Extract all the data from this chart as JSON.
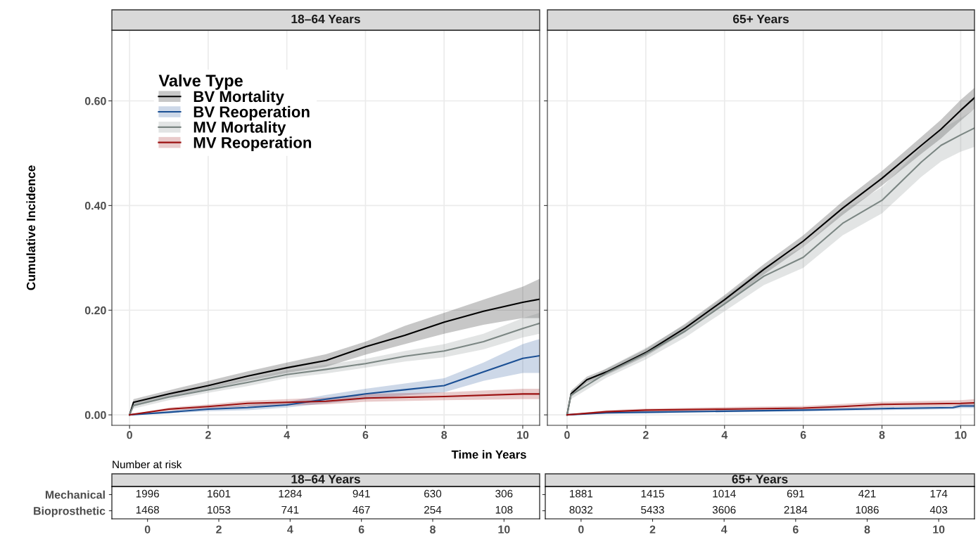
{
  "chart_data": [
    {
      "type": "line",
      "title": "18–64 Years",
      "xlabel": "Time in Years",
      "ylabel": "Cumulative Incidence",
      "legend_title": "Valve Type",
      "legend": "top left",
      "grid": true,
      "xlim": [
        -0.45,
        10.43
      ],
      "ylim": [
        -0.02,
        0.735
      ],
      "xticks": [
        0,
        2,
        4,
        6,
        8,
        10
      ],
      "yticks": [
        {
          "value": 0,
          "label": "0.00"
        },
        {
          "value": 0.2,
          "label": "0.20"
        },
        {
          "value": 0.4,
          "label": "0.40"
        },
        {
          "value": 0.6,
          "label": "0.60"
        }
      ],
      "series": [
        {
          "name": "BV Mortality",
          "color": "#000000",
          "x": [
            0,
            0.1,
            1,
            2,
            3,
            4,
            5,
            6,
            7,
            8,
            9,
            10,
            10.43
          ],
          "values": [
            0,
            0.024,
            0.04,
            0.056,
            0.074,
            0.09,
            0.104,
            0.13,
            0.152,
            0.177,
            0.198,
            0.215,
            0.221
          ],
          "lower": [
            0,
            0.016,
            0.034,
            0.05,
            0.065,
            0.08,
            0.092,
            0.115,
            0.135,
            0.155,
            0.172,
            0.185,
            0.185
          ],
          "upper": [
            0,
            0.03,
            0.047,
            0.065,
            0.083,
            0.1,
            0.116,
            0.14,
            0.17,
            0.195,
            0.22,
            0.245,
            0.26
          ]
        },
        {
          "name": "BV Reoperation",
          "color": "#1a4f94",
          "x": [
            0,
            1,
            2,
            3,
            4,
            5,
            6,
            7,
            8,
            9,
            10,
            10.43
          ],
          "values": [
            0,
            0.005,
            0.011,
            0.014,
            0.019,
            0.03,
            0.04,
            0.048,
            0.056,
            0.082,
            0.108,
            0.113
          ],
          "lower": [
            0,
            0.003,
            0.007,
            0.009,
            0.014,
            0.022,
            0.03,
            0.037,
            0.043,
            0.065,
            0.08,
            0.08
          ],
          "upper": [
            0,
            0.008,
            0.015,
            0.019,
            0.025,
            0.038,
            0.05,
            0.06,
            0.07,
            0.1,
            0.135,
            0.145
          ]
        },
        {
          "name": "MV Mortality",
          "color": "#7b8683",
          "x": [
            0,
            0.1,
            1,
            2,
            3,
            4,
            5,
            6,
            7,
            8,
            9,
            10,
            10.43
          ],
          "values": [
            0,
            0.018,
            0.034,
            0.048,
            0.062,
            0.077,
            0.087,
            0.098,
            0.112,
            0.122,
            0.14,
            0.165,
            0.175
          ],
          "lower": [
            0,
            0.012,
            0.028,
            0.042,
            0.055,
            0.07,
            0.079,
            0.09,
            0.102,
            0.11,
            0.125,
            0.148,
            0.155
          ],
          "upper": [
            0,
            0.022,
            0.04,
            0.054,
            0.07,
            0.085,
            0.096,
            0.107,
            0.122,
            0.135,
            0.155,
            0.185,
            0.195
          ]
        },
        {
          "name": "MV Reoperation",
          "color": "#9b1010",
          "x": [
            0,
            1,
            2,
            3,
            4,
            5,
            6,
            8,
            10,
            10.43
          ],
          "values": [
            0,
            0.011,
            0.016,
            0.022,
            0.024,
            0.026,
            0.032,
            0.035,
            0.04,
            0.04
          ],
          "lower": [
            0,
            0.008,
            0.012,
            0.016,
            0.018,
            0.02,
            0.025,
            0.028,
            0.03,
            0.03
          ],
          "upper": [
            0,
            0.014,
            0.02,
            0.027,
            0.03,
            0.033,
            0.04,
            0.043,
            0.05,
            0.05
          ]
        }
      ]
    },
    {
      "type": "line",
      "title": "65+ Years",
      "tick_labels": "x",
      "grid": true,
      "xlim": [
        -0.5,
        10.35
      ],
      "ylim": [
        -0.02,
        0.735
      ],
      "xticks": [
        0,
        2,
        4,
        6,
        8,
        10
      ],
      "yticks": [
        0,
        0.2,
        0.4,
        0.6
      ],
      "series": [
        {
          "color": "#000000",
          "x": [
            0,
            0.1,
            0.5,
            1,
            2,
            3,
            4,
            5,
            6,
            7,
            8,
            9,
            9.5,
            10,
            10.35
          ],
          "values": [
            0,
            0.04,
            0.067,
            0.082,
            0.119,
            0.166,
            0.22,
            0.278,
            0.332,
            0.395,
            0.452,
            0.515,
            0.546,
            0.582,
            0.606
          ],
          "lower": [
            0,
            0.034,
            0.061,
            0.076,
            0.112,
            0.158,
            0.211,
            0.268,
            0.321,
            0.382,
            0.438,
            0.499,
            0.528,
            0.562,
            0.585
          ],
          "upper": [
            0,
            0.046,
            0.073,
            0.088,
            0.126,
            0.174,
            0.229,
            0.288,
            0.343,
            0.408,
            0.466,
            0.531,
            0.564,
            0.602,
            0.625
          ]
        },
        {
          "color": "#1a4f94",
          "x": [
            0,
            1,
            2,
            4,
            6,
            8,
            9.8,
            10,
            10.35
          ],
          "values": [
            0,
            0.004,
            0.005,
            0.007,
            0.009,
            0.012,
            0.014,
            0.017,
            0.017
          ],
          "lower": [
            0,
            0.002,
            0.003,
            0.005,
            0.007,
            0.009,
            0.011,
            0.013,
            0.013
          ],
          "upper": [
            0,
            0.006,
            0.007,
            0.009,
            0.011,
            0.015,
            0.017,
            0.021,
            0.021
          ]
        },
        {
          "color": "#7b8683",
          "x": [
            0,
            0.1,
            1,
            2,
            3,
            4,
            5,
            6,
            7,
            8,
            9,
            9.5,
            10,
            10.35
          ],
          "values": [
            0,
            0.038,
            0.08,
            0.117,
            0.16,
            0.212,
            0.265,
            0.301,
            0.366,
            0.41,
            0.483,
            0.515,
            0.535,
            0.548
          ],
          "lower": [
            0,
            0.03,
            0.071,
            0.106,
            0.148,
            0.198,
            0.248,
            0.281,
            0.343,
            0.385,
            0.455,
            0.484,
            0.503,
            0.512
          ],
          "upper": [
            0,
            0.046,
            0.089,
            0.128,
            0.172,
            0.226,
            0.282,
            0.321,
            0.389,
            0.435,
            0.511,
            0.546,
            0.567,
            0.584
          ]
        },
        {
          "color": "#9b1010",
          "x": [
            0,
            1,
            2,
            4,
            6,
            7,
            8,
            10,
            10.35
          ],
          "values": [
            0,
            0.006,
            0.009,
            0.011,
            0.013,
            0.016,
            0.02,
            0.022,
            0.023
          ],
          "lower": [
            0,
            0.004,
            0.006,
            0.008,
            0.009,
            0.012,
            0.015,
            0.017,
            0.017
          ],
          "upper": [
            0,
            0.009,
            0.012,
            0.015,
            0.017,
            0.021,
            0.025,
            0.028,
            0.03
          ]
        }
      ]
    },
    {
      "type": "heatmap",
      "title": "18–64 Years",
      "annotations": [
        "Number at risk"
      ],
      "data_labels": true,
      "color": "#ffffff",
      "categories": [
        "0",
        "2",
        "4",
        "6",
        "8",
        "10"
      ],
      "y_categories": [
        "Mechanical",
        "Bioprosthetic"
      ],
      "cells": [
        [
          1996,
          1601,
          1284,
          941,
          630,
          306
        ],
        [
          1468,
          1053,
          741,
          467,
          254,
          108
        ]
      ]
    },
    {
      "type": "heatmap",
      "title": "65+ Years",
      "tick_labels": "x",
      "data_labels": true,
      "color": "#ffffff",
      "categories": [
        "0",
        "2",
        "4",
        "6",
        "8",
        "10"
      ],
      "y_categories": [
        null,
        null
      ],
      "cells": [
        [
          1881,
          1415,
          1014,
          691,
          421,
          174
        ],
        [
          8032,
          5433,
          3606,
          2184,
          1086,
          403
        ]
      ]
    }
  ]
}
